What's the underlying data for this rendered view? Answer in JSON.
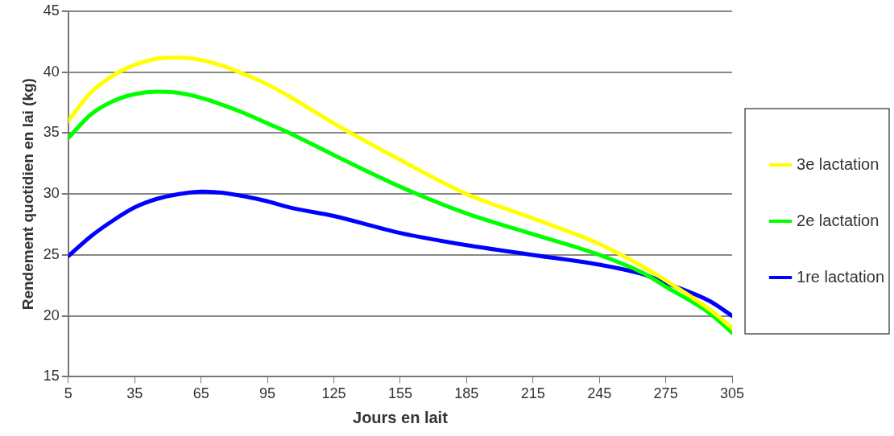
{
  "chart_data": {
    "type": "line",
    "xlabel": "Jours en lait",
    "ylabel": "Rendement quotidien en lai (kg)",
    "xlim": [
      5,
      305
    ],
    "xticks": [
      5,
      35,
      65,
      95,
      125,
      155,
      185,
      215,
      245,
      275,
      305
    ],
    "ylim": [
      15,
      45
    ],
    "yticks": [
      15,
      20,
      25,
      30,
      35,
      40,
      45
    ],
    "grid": "y",
    "legend": "right",
    "marker": "none",
    "line_style": "solid",
    "series": [
      {
        "name": "3e lactation",
        "color": "#ffff00",
        "x": [
          5,
          15,
          25,
          35,
          45,
          55,
          65,
          75,
          85,
          95,
          105,
          125,
          155,
          185,
          215,
          245,
          265,
          275,
          295,
          305
        ],
        "values": [
          36.0,
          38.3,
          39.7,
          40.6,
          41.1,
          41.2,
          41.0,
          40.5,
          39.8,
          39.0,
          38.0,
          35.8,
          32.8,
          30.0,
          28.0,
          25.9,
          24.0,
          22.9,
          20.5,
          19.0
        ]
      },
      {
        "name": "2e lactation",
        "color": "#00ff00",
        "x": [
          5,
          15,
          25,
          35,
          45,
          55,
          65,
          75,
          85,
          95,
          105,
          125,
          155,
          185,
          215,
          245,
          265,
          275,
          295,
          305
        ],
        "values": [
          34.6,
          36.5,
          37.6,
          38.2,
          38.4,
          38.3,
          37.9,
          37.3,
          36.6,
          35.8,
          35.0,
          33.2,
          30.6,
          28.4,
          26.7,
          25.0,
          23.5,
          22.4,
          20.2,
          18.6
        ]
      },
      {
        "name": "1re lactation",
        "color": "#0000ff",
        "x": [
          5,
          15,
          25,
          35,
          45,
          55,
          65,
          75,
          85,
          95,
          105,
          125,
          155,
          185,
          215,
          245,
          265,
          275,
          295,
          305
        ],
        "values": [
          24.9,
          26.5,
          27.8,
          28.9,
          29.6,
          30.0,
          30.2,
          30.1,
          29.8,
          29.4,
          28.9,
          28.2,
          26.8,
          25.8,
          25.0,
          24.2,
          23.4,
          22.7,
          21.2,
          20.0
        ]
      }
    ]
  }
}
